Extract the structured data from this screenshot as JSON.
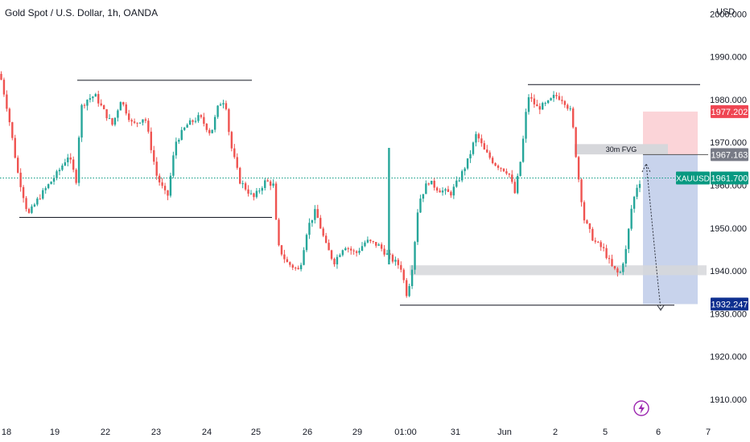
{
  "header": {
    "symbol_title": "Gold Spot / U.S. Dollar, 1h, OANDA",
    "currency": "USD"
  },
  "colors": {
    "bull": "#26a69a",
    "bear": "#ef5350",
    "last_price": "#089981",
    "target": "#0d2f8f",
    "stop": "#ef4653",
    "fvg_label": "#787b86",
    "profit_zone": "#c8d3ec",
    "loss_zone": "#fbd4d8",
    "grey_zone": "#d6d7db"
  },
  "icons": {
    "alert": "lightning-bolt-icon"
  },
  "chart_data": {
    "type": "candlestick",
    "instrument": "XAUUSD",
    "timeframe": "1h",
    "x_tick_labels": [
      "18",
      "19",
      "22",
      "23",
      "24",
      "25",
      "26",
      "29",
      "01:00",
      "31",
      "Jun",
      "2",
      "5",
      "6",
      "7"
    ],
    "y_ticks": [
      1910,
      1920,
      1930,
      1940,
      1950,
      1960,
      1970,
      1980,
      1990,
      2000
    ],
    "y_tick_labels": [
      "1910.000",
      "1920.000",
      "1930.000",
      "1940.000",
      "1950.000",
      "1960.000",
      "1970.000",
      "1980.000",
      "1990.000",
      "2000.000"
    ],
    "ylim": [
      1906,
      2002
    ],
    "price_labels": {
      "stop": {
        "value": 1977.202,
        "text": "1977.202"
      },
      "fvg": {
        "value": 1967.163,
        "text": "1967.163"
      },
      "last": {
        "symbol": "XAUUSD",
        "value": 1961.7,
        "text": "1961.700"
      },
      "target": {
        "value": 1932.247,
        "text": "1932.247"
      }
    },
    "annotations": {
      "fvg_label": "30m FVG",
      "fvg_zone": [
        1967.2,
        1969.6
      ],
      "resistance_levels": [
        1984.5,
        1983.5
      ],
      "support_levels": [
        1952.5,
        1932.0
      ],
      "demand_zone": [
        1939.0,
        1941.3
      ],
      "short_position": {
        "entry": 1967.163,
        "stop": 1977.202,
        "target": 1932.247
      }
    },
    "close_path": [
      [
        0,
        1986
      ],
      [
        10,
        1977
      ],
      [
        22,
        1963
      ],
      [
        35,
        1953
      ],
      [
        48,
        1957
      ],
      [
        60,
        1960
      ],
      [
        72,
        1963
      ],
      [
        85,
        1967
      ],
      [
        95,
        1961
      ],
      [
        100,
        1978
      ],
      [
        108,
        1980
      ],
      [
        118,
        1981
      ],
      [
        130,
        1977
      ],
      [
        140,
        1974
      ],
      [
        150,
        1980
      ],
      [
        165,
        1974
      ],
      [
        180,
        1976
      ],
      [
        195,
        1962
      ],
      [
        208,
        1957
      ],
      [
        218,
        1970
      ],
      [
        232,
        1974
      ],
      [
        248,
        1976
      ],
      [
        262,
        1972
      ],
      [
        272,
        1979
      ],
      [
        280,
        1980
      ],
      [
        286,
        1970
      ],
      [
        298,
        1961
      ],
      [
        315,
        1957
      ],
      [
        330,
        1961
      ],
      [
        340,
        1960
      ],
      [
        345,
        1946
      ],
      [
        356,
        1942
      ],
      [
        372,
        1940
      ],
      [
        382,
        1950
      ],
      [
        392,
        1954
      ],
      [
        405,
        1946
      ],
      [
        415,
        1942
      ],
      [
        428,
        1946
      ],
      [
        442,
        1944
      ],
      [
        455,
        1947
      ],
      [
        470,
        1946
      ],
      [
        485,
        1943
      ],
      [
        498,
        1941
      ],
      [
        506,
        1934
      ],
      [
        513,
        1942
      ],
      [
        520,
        1956
      ],
      [
        532,
        1961
      ],
      [
        545,
        1959
      ],
      [
        560,
        1958
      ],
      [
        572,
        1962
      ],
      [
        582,
        1966
      ],
      [
        592,
        1972
      ],
      [
        602,
        1968
      ],
      [
        615,
        1965
      ],
      [
        632,
        1963
      ],
      [
        640,
        1958
      ],
      [
        648,
        1967
      ],
      [
        656,
        1981
      ],
      [
        668,
        1978
      ],
      [
        680,
        1979
      ],
      [
        690,
        1981
      ],
      [
        700,
        1980
      ],
      [
        710,
        1977
      ],
      [
        718,
        1963
      ],
      [
        726,
        1952
      ],
      [
        738,
        1947
      ],
      [
        750,
        1945
      ],
      [
        760,
        1941
      ],
      [
        770,
        1939
      ],
      [
        778,
        1945
      ],
      [
        785,
        1955
      ],
      [
        792,
        1960
      ],
      [
        798,
        1961.7
      ]
    ]
  }
}
